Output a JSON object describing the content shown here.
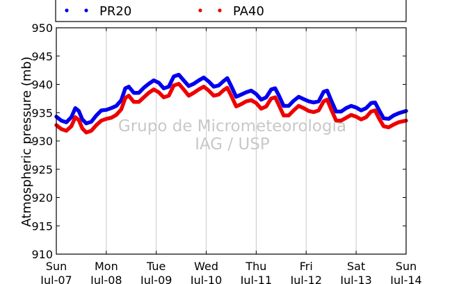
{
  "chart_data": {
    "type": "line",
    "title": "",
    "xlabel": "",
    "ylabel": "Atmospheric pressure (mb)",
    "ylim": [
      910,
      950
    ],
    "yticks": [
      910,
      915,
      920,
      925,
      930,
      935,
      940,
      945,
      950
    ],
    "xlim": [
      0,
      7
    ],
    "xticks": [
      {
        "day": "Sun",
        "date": "Jul-07"
      },
      {
        "day": "Mon",
        "date": "Jul-08"
      },
      {
        "day": "Tue",
        "date": "Jul-09"
      },
      {
        "day": "Wed",
        "date": "Jul-10"
      },
      {
        "day": "Thu",
        "date": "Jul-11"
      },
      {
        "day": "Fri",
        "date": "Jul-12"
      },
      {
        "day": "Sat",
        "date": "Jul-13"
      },
      {
        "day": "Sun",
        "date": "Jul-14"
      }
    ],
    "grid": "vertical",
    "legend_position": "top",
    "watermark": [
      "Grupo de Micrometeorologia",
      "IAG / USP"
    ],
    "series": [
      {
        "name": "PR20",
        "color": "#0000ee",
        "points": [
          [
            0,
            934.3
          ],
          [
            0.1,
            933.6
          ],
          [
            0.2,
            933.3
          ],
          [
            0.3,
            934.2
          ],
          [
            0.38,
            935.8
          ],
          [
            0.45,
            935.3
          ],
          [
            0.52,
            933.8
          ],
          [
            0.6,
            933.1
          ],
          [
            0.7,
            933.4
          ],
          [
            0.8,
            934.5
          ],
          [
            0.9,
            935.4
          ],
          [
            1.0,
            935.5
          ],
          [
            1.1,
            935.8
          ],
          [
            1.2,
            936.2
          ],
          [
            1.3,
            937.2
          ],
          [
            1.38,
            939.3
          ],
          [
            1.45,
            939.6
          ],
          [
            1.55,
            938.5
          ],
          [
            1.65,
            938.5
          ],
          [
            1.75,
            939.4
          ],
          [
            1.85,
            940.1
          ],
          [
            1.95,
            940.7
          ],
          [
            2.05,
            940.3
          ],
          [
            2.15,
            939.3
          ],
          [
            2.25,
            939.6
          ],
          [
            2.35,
            941.4
          ],
          [
            2.45,
            941.7
          ],
          [
            2.55,
            940.7
          ],
          [
            2.65,
            939.7
          ],
          [
            2.75,
            940.1
          ],
          [
            2.85,
            940.7
          ],
          [
            2.95,
            941.2
          ],
          [
            3.05,
            940.5
          ],
          [
            3.15,
            939.6
          ],
          [
            3.25,
            939.8
          ],
          [
            3.35,
            940.6
          ],
          [
            3.42,
            941.1
          ],
          [
            3.5,
            939.7
          ],
          [
            3.6,
            937.8
          ],
          [
            3.7,
            938.2
          ],
          [
            3.8,
            938.6
          ],
          [
            3.9,
            938.9
          ],
          [
            4.0,
            938.3
          ],
          [
            4.1,
            937.3
          ],
          [
            4.2,
            937.7
          ],
          [
            4.3,
            939.1
          ],
          [
            4.38,
            939.3
          ],
          [
            4.45,
            938.1
          ],
          [
            4.55,
            936.2
          ],
          [
            4.65,
            936.2
          ],
          [
            4.75,
            937.1
          ],
          [
            4.85,
            937.8
          ],
          [
            4.95,
            937.4
          ],
          [
            5.05,
            937.0
          ],
          [
            5.15,
            936.8
          ],
          [
            5.25,
            937.0
          ],
          [
            5.35,
            938.7
          ],
          [
            5.42,
            938.9
          ],
          [
            5.5,
            937.2
          ],
          [
            5.6,
            935.2
          ],
          [
            5.7,
            935.2
          ],
          [
            5.8,
            935.8
          ],
          [
            5.9,
            936.2
          ],
          [
            6.0,
            935.9
          ],
          [
            6.1,
            935.4
          ],
          [
            6.2,
            935.8
          ],
          [
            6.3,
            936.7
          ],
          [
            6.38,
            936.8
          ],
          [
            6.45,
            935.6
          ],
          [
            6.55,
            934.0
          ],
          [
            6.65,
            933.9
          ],
          [
            6.75,
            934.5
          ],
          [
            6.85,
            934.9
          ],
          [
            7.0,
            935.3
          ]
        ]
      },
      {
        "name": "PA40",
        "color": "#ee0000",
        "points": [
          [
            0,
            932.8
          ],
          [
            0.1,
            932.1
          ],
          [
            0.2,
            931.8
          ],
          [
            0.3,
            932.6
          ],
          [
            0.38,
            934.2
          ],
          [
            0.45,
            933.7
          ],
          [
            0.52,
            932.2
          ],
          [
            0.6,
            931.5
          ],
          [
            0.7,
            931.8
          ],
          [
            0.8,
            932.8
          ],
          [
            0.9,
            933.6
          ],
          [
            1.0,
            933.9
          ],
          [
            1.1,
            934.1
          ],
          [
            1.2,
            934.6
          ],
          [
            1.3,
            935.6
          ],
          [
            1.38,
            937.6
          ],
          [
            1.45,
            938.0
          ],
          [
            1.55,
            936.9
          ],
          [
            1.65,
            936.9
          ],
          [
            1.75,
            937.7
          ],
          [
            1.85,
            938.5
          ],
          [
            1.95,
            939.1
          ],
          [
            2.05,
            938.6
          ],
          [
            2.15,
            937.7
          ],
          [
            2.25,
            938.0
          ],
          [
            2.35,
            939.8
          ],
          [
            2.45,
            940.1
          ],
          [
            2.55,
            939.1
          ],
          [
            2.65,
            938.0
          ],
          [
            2.75,
            938.5
          ],
          [
            2.85,
            939.1
          ],
          [
            2.95,
            939.6
          ],
          [
            3.05,
            938.9
          ],
          [
            3.15,
            938.0
          ],
          [
            3.25,
            938.2
          ],
          [
            3.35,
            939.0
          ],
          [
            3.42,
            939.4
          ],
          [
            3.5,
            938.0
          ],
          [
            3.6,
            936.1
          ],
          [
            3.7,
            936.5
          ],
          [
            3.8,
            937.0
          ],
          [
            3.9,
            937.2
          ],
          [
            4.0,
            936.7
          ],
          [
            4.1,
            935.7
          ],
          [
            4.2,
            936.1
          ],
          [
            4.3,
            937.5
          ],
          [
            4.38,
            937.7
          ],
          [
            4.45,
            936.4
          ],
          [
            4.55,
            934.5
          ],
          [
            4.65,
            934.5
          ],
          [
            4.75,
            935.4
          ],
          [
            4.85,
            936.2
          ],
          [
            4.95,
            935.8
          ],
          [
            5.05,
            935.3
          ],
          [
            5.15,
            935.1
          ],
          [
            5.25,
            935.4
          ],
          [
            5.35,
            937.0
          ],
          [
            5.42,
            937.3
          ],
          [
            5.5,
            935.6
          ],
          [
            5.6,
            933.6
          ],
          [
            5.7,
            933.6
          ],
          [
            5.8,
            934.1
          ],
          [
            5.9,
            934.6
          ],
          [
            6.0,
            934.3
          ],
          [
            6.1,
            933.8
          ],
          [
            6.2,
            934.2
          ],
          [
            6.3,
            935.2
          ],
          [
            6.38,
            935.4
          ],
          [
            6.45,
            934.1
          ],
          [
            6.55,
            932.6
          ],
          [
            6.65,
            932.4
          ],
          [
            6.75,
            932.9
          ],
          [
            6.85,
            933.3
          ],
          [
            7.0,
            933.6
          ]
        ]
      }
    ]
  }
}
